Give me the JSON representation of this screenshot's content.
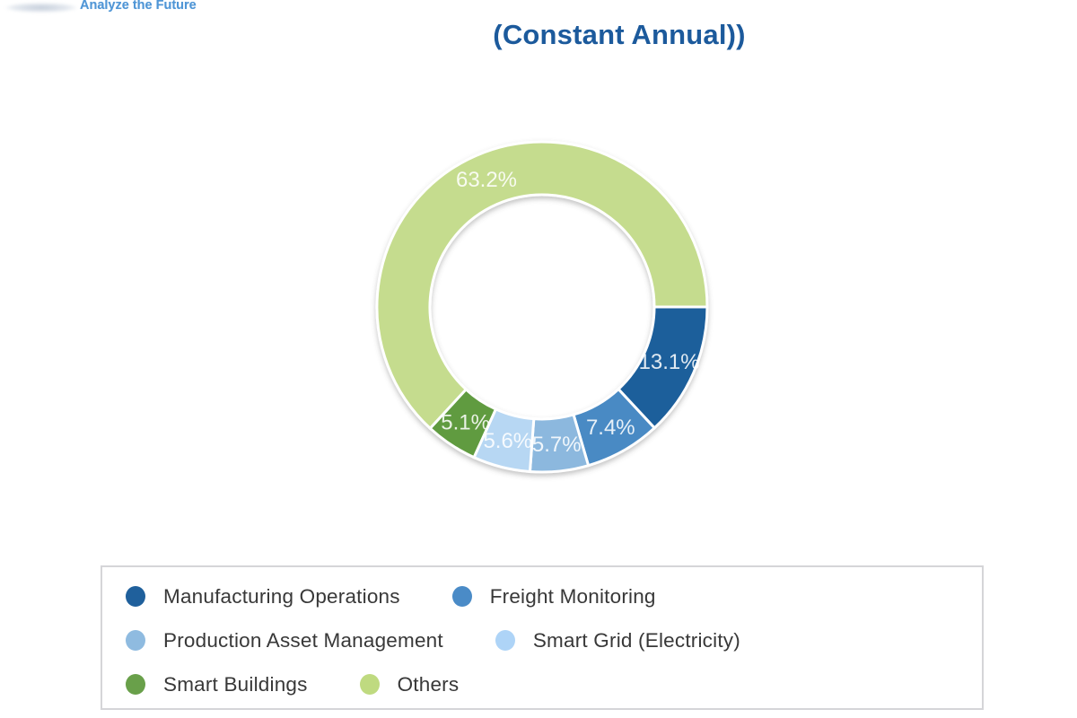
{
  "header": {
    "logo_tagline": "Analyze the Future",
    "title": "(Constant Annual))"
  },
  "chart_data": {
    "type": "pie",
    "subtype": "donut",
    "title": "(Constant Annual))",
    "categories": [
      "Manufacturing Operations",
      "Freight Monitoring",
      "Production Asset Management",
      "Smart Grid (Electricity)",
      "Smart Buildings",
      "Others"
    ],
    "values": [
      13.1,
      7.4,
      5.7,
      5.6,
      5.1,
      63.2
    ],
    "slice_labels": [
      "13.1%",
      "7.4%",
      "5.7%",
      "5.6%",
      "5.1%",
      "63.2%"
    ],
    "colors": [
      "#1f5f9b",
      "#4a8ac4",
      "#8cb8de",
      "#b7d7f3",
      "#619b41",
      "#c5dc8e"
    ],
    "start_angle_deg": 0,
    "direction": "clockwise",
    "inner_radius_ratio": 0.68,
    "separator_color": "#ffffff",
    "slice_label_color": "rgba(255,255,255,0.87)",
    "legend_position": "bottom"
  },
  "legend": {
    "rows": [
      [
        {
          "label": "Manufacturing Operations",
          "color": "#1f609c"
        },
        {
          "label": "Freight Monitoring",
          "color": "#4a8bc7"
        }
      ],
      [
        {
          "label": "Production Asset Management",
          "color": "#8fbbe0"
        },
        {
          "label": "Smart Grid (Electricity)",
          "color": "#aed4f7"
        }
      ],
      [
        {
          "label": "Smart Buildings",
          "color": "#69a04a"
        },
        {
          "label": "Others",
          "color": "#bfda80"
        }
      ]
    ]
  },
  "title_color": "#1c5a9c",
  "tagline_color": "#5096d6"
}
